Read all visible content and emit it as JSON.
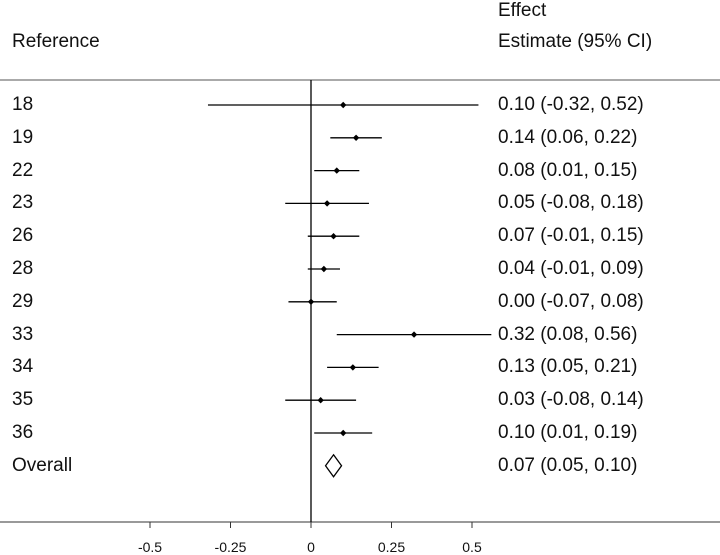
{
  "headers": {
    "reference": "Reference",
    "effect_line1": "Effect",
    "effect_line2": "Estimate (95% CI)"
  },
  "chart_data": {
    "type": "forest",
    "title": "",
    "xlabel": "",
    "x_ticks": [
      "-0.5",
      "-0.25",
      "0",
      "0.25",
      "0.5"
    ],
    "x_tick_values": [
      -0.5,
      -0.25,
      0,
      0.25,
      0.5
    ],
    "xlim": [
      -0.5,
      0.5
    ],
    "reference_line": 0,
    "studies": [
      {
        "label": "18",
        "estimate": 0.1,
        "lower": -0.32,
        "upper": 0.52,
        "text": "0.10 (-0.32, 0.52)"
      },
      {
        "label": "19",
        "estimate": 0.14,
        "lower": 0.06,
        "upper": 0.22,
        "text": "0.14 (0.06, 0.22)"
      },
      {
        "label": "22",
        "estimate": 0.08,
        "lower": 0.01,
        "upper": 0.15,
        "text": "0.08 (0.01, 0.15)"
      },
      {
        "label": "23",
        "estimate": 0.05,
        "lower": -0.08,
        "upper": 0.18,
        "text": "0.05 (-0.08, 0.18)"
      },
      {
        "label": "26",
        "estimate": 0.07,
        "lower": -0.01,
        "upper": 0.15,
        "text": "0.07 (-0.01, 0.15)"
      },
      {
        "label": "28",
        "estimate": 0.04,
        "lower": -0.01,
        "upper": 0.09,
        "text": "0.04 (-0.01, 0.09)"
      },
      {
        "label": "29",
        "estimate": 0.0,
        "lower": -0.07,
        "upper": 0.08,
        "text": "0.00 (-0.07, 0.08)"
      },
      {
        "label": "33",
        "estimate": 0.32,
        "lower": 0.08,
        "upper": 0.56,
        "text": "0.32 (0.08, 0.56)"
      },
      {
        "label": "34",
        "estimate": 0.13,
        "lower": 0.05,
        "upper": 0.21,
        "text": "0.13 (0.05, 0.21)"
      },
      {
        "label": "35",
        "estimate": 0.03,
        "lower": -0.08,
        "upper": 0.14,
        "text": "0.03 (-0.08, 0.14)"
      },
      {
        "label": "36",
        "estimate": 0.1,
        "lower": 0.01,
        "upper": 0.19,
        "text": "0.10 (0.01, 0.19)"
      }
    ],
    "overall": {
      "label": "Overall",
      "estimate": 0.07,
      "lower": 0.05,
      "upper": 0.1,
      "text": "0.07 (0.05, 0.10)"
    }
  }
}
